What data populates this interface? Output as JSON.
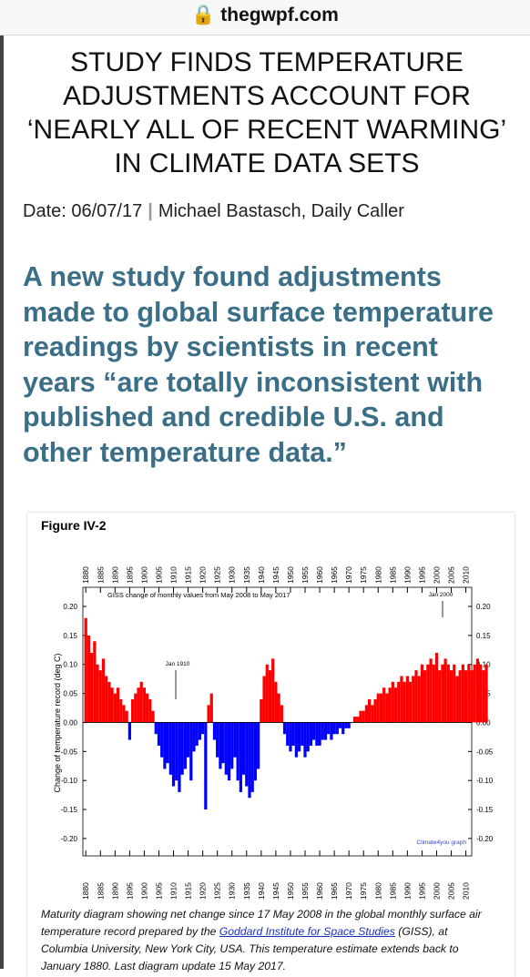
{
  "browser": {
    "url": "thegwpf.com"
  },
  "article": {
    "title": "STUDY FINDS TEMPERATURE ADJUSTMENTS ACCOUNT FOR ‘NEARLY ALL OF RECENT WARMING’ IN CLIMATE DATA SETS",
    "date": "Date: 06/07/17",
    "separator": "|",
    "byline": "Michael Bastasch, Daily Caller",
    "lead": "A new study found adjustments made to global surface temperature readings by scientists in recent years “are totally inconsistent with published and credible U.S. and other temperature data.”"
  },
  "chart_data": {
    "type": "bar",
    "title": "Figure IV-2",
    "annotation": "GISS change of monthly values from May 2008 to May 2017",
    "marker_1": "Jan 1910",
    "marker_2": "Jan 2000",
    "credit": "Climate4you graph",
    "y_label": "Change of temperature record (deg C)",
    "positive_color": "#ff0000",
    "negative_color": "#0000ff",
    "x": [
      1880,
      1881,
      1882,
      1883,
      1884,
      1885,
      1886,
      1887,
      1888,
      1889,
      1890,
      1891,
      1892,
      1893,
      1894,
      1895,
      1896,
      1897,
      1898,
      1899,
      1900,
      1901,
      1902,
      1903,
      1904,
      1905,
      1906,
      1907,
      1908,
      1909,
      1910,
      1911,
      1912,
      1913,
      1914,
      1915,
      1916,
      1917,
      1918,
      1919,
      1920,
      1921,
      1922,
      1923,
      1924,
      1925,
      1926,
      1927,
      1928,
      1929,
      1930,
      1931,
      1932,
      1933,
      1934,
      1935,
      1936,
      1937,
      1938,
      1939,
      1940,
      1941,
      1942,
      1943,
      1944,
      1945,
      1946,
      1947,
      1948,
      1949,
      1950,
      1951,
      1952,
      1953,
      1954,
      1955,
      1956,
      1957,
      1958,
      1959,
      1960,
      1961,
      1962,
      1963,
      1964,
      1965,
      1966,
      1967,
      1968,
      1969,
      1970,
      1971,
      1972,
      1973,
      1974,
      1975,
      1976,
      1977,
      1978,
      1979,
      1980,
      1981,
      1982,
      1983,
      1984,
      1985,
      1986,
      1987,
      1988,
      1989,
      1990,
      1991,
      1992,
      1993,
      1994,
      1995,
      1996,
      1997,
      1998,
      1999,
      2000,
      2001,
      2002,
      2003,
      2004,
      2005,
      2006,
      2007,
      2008,
      2009,
      2010,
      2011,
      2012,
      2013,
      2014,
      2015,
      2016,
      2017
    ],
    "values": [
      0.18,
      0.15,
      0.12,
      0.14,
      0.1,
      0.09,
      0.11,
      0.08,
      0.07,
      0.06,
      0.05,
      0.06,
      0.04,
      0.03,
      0.02,
      -0.03,
      0.04,
      0.05,
      0.06,
      0.07,
      0.06,
      0.05,
      0.04,
      0.02,
      -0.02,
      -0.04,
      -0.06,
      -0.08,
      -0.07,
      -0.09,
      -0.11,
      -0.1,
      -0.12,
      -0.09,
      -0.08,
      -0.06,
      -0.1,
      -0.05,
      -0.04,
      -0.03,
      -0.02,
      -0.15,
      0.03,
      0.05,
      -0.03,
      -0.06,
      -0.08,
      -0.07,
      -0.09,
      -0.1,
      -0.08,
      -0.06,
      -0.1,
      -0.12,
      -0.09,
      -0.11,
      -0.13,
      -0.12,
      -0.1,
      -0.08,
      0.04,
      0.08,
      0.1,
      0.09,
      0.11,
      0.07,
      0.05,
      0.03,
      -0.02,
      -0.04,
      -0.05,
      -0.04,
      -0.06,
      -0.05,
      -0.04,
      -0.06,
      -0.05,
      -0.04,
      -0.03,
      -0.04,
      -0.04,
      -0.03,
      -0.03,
      -0.02,
      -0.03,
      -0.02,
      -0.02,
      -0.01,
      -0.02,
      -0.01,
      -0.01,
      0.0,
      0.01,
      0.01,
      0.02,
      0.02,
      0.03,
      0.04,
      0.03,
      0.04,
      0.05,
      0.05,
      0.06,
      0.05,
      0.06,
      0.07,
      0.06,
      0.07,
      0.08,
      0.07,
      0.08,
      0.07,
      0.08,
      0.09,
      0.08,
      0.1,
      0.09,
      0.1,
      0.11,
      0.1,
      0.12,
      0.09,
      0.1,
      0.11,
      0.1,
      0.09,
      0.1,
      0.08,
      0.09,
      0.1,
      0.09,
      0.1,
      0.09,
      0.1,
      0.11,
      0.1,
      0.09,
      0.1
    ],
    "xlim": [
      1879,
      2012
    ],
    "xticks": [
      1880,
      1885,
      1890,
      1895,
      1900,
      1905,
      1910,
      1915,
      1920,
      1925,
      1930,
      1935,
      1940,
      1945,
      1950,
      1955,
      1960,
      1965,
      1970,
      1975,
      1980,
      1985,
      1990,
      1995,
      2000,
      2005,
      2010
    ],
    "ylim": [
      -0.23,
      0.233
    ],
    "yticks": [
      {
        "value": 0.2,
        "label": "0.20"
      },
      {
        "value": 0.15,
        "label": "0.15"
      },
      {
        "value": 0.1,
        "label": "0.10"
      },
      {
        "value": 0.05,
        "label": "0.05"
      },
      {
        "value": 0,
        "label": "0.00"
      },
      {
        "value": -0.05,
        "label": "-0.05"
      },
      {
        "value": -0.1,
        "label": "-0.10"
      },
      {
        "value": -0.15,
        "label": "-0.15"
      },
      {
        "value": -0.2,
        "label": "-0.20"
      }
    ]
  },
  "caption": {
    "before": "Maturity diagram showing net change since 17 May 2008 in the global monthly surface air temperature record prepared by the ",
    "link": "Goddard Institute for Space Studies",
    "after": " (GISS), at Columbia University, New York City, USA. This temperature estimate extends back to January 1880. Last diagram update 15 May 2017."
  }
}
